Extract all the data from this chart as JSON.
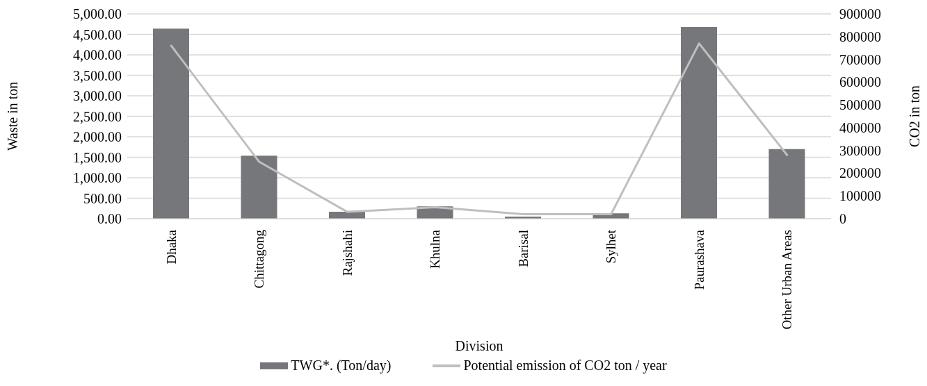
{
  "chart_data": {
    "type": "bar",
    "xlabel": "Division",
    "ylabel": "Waste in ton",
    "y2label": "CO2 in ton",
    "categories": [
      "Dhaka",
      "Chittagong",
      "Rajshahi",
      "Khulna",
      "Barisal",
      "Sylhet",
      "Paurashava",
      "Other Urban Areas"
    ],
    "series": [
      {
        "name": "TWG*. (Ton/day)",
        "color": "#76777b",
        "values": [
          4640,
          1540,
          170,
          300,
          50,
          130,
          4680,
          1700
        ]
      },
      {
        "name": "Potential emission of CO2 ton / year",
        "type": "line",
        "axis": "y2",
        "color": "#bfbfbf",
        "marker": "none",
        "values": [
          760000,
          250000,
          30000,
          50000,
          20000,
          20000,
          770000,
          280000
        ]
      }
    ],
    "ylim": [
      0,
      5000
    ],
    "yticks": [
      {
        "value": 0,
        "label": "0.00"
      },
      {
        "value": 500,
        "label": "500.00"
      },
      {
        "value": 1000,
        "label": "1,000.00"
      },
      {
        "value": 1500,
        "label": "1,500.00"
      },
      {
        "value": 2000,
        "label": "2,000.00"
      },
      {
        "value": 2500,
        "label": "2,500.00"
      },
      {
        "value": 3000,
        "label": "3,000.00"
      },
      {
        "value": 3500,
        "label": "3,500.00"
      },
      {
        "value": 4000,
        "label": "4,000.00"
      },
      {
        "value": 4500,
        "label": "4,500.00"
      },
      {
        "value": 5000,
        "label": "5,000.00"
      }
    ],
    "y2lim": [
      0,
      900000
    ],
    "y2ticks": [
      0,
      100000,
      200000,
      300000,
      400000,
      500000,
      600000,
      700000,
      800000,
      900000
    ],
    "grid": "y",
    "legend": "bottom"
  }
}
